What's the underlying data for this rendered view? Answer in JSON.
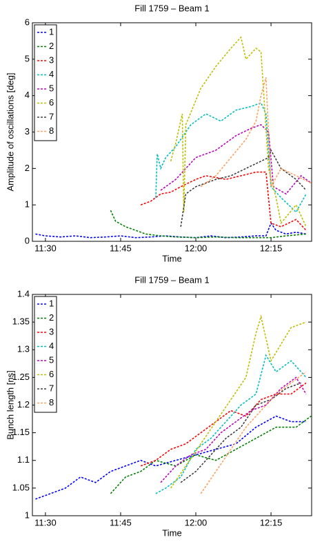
{
  "chart_data": [
    {
      "type": "line",
      "title": "Fill 1759 – Beam 1",
      "xlabel": "Time",
      "ylabel": "Amplitude of oscillations [deg]",
      "xlim": [
        687.4,
        743.1
      ],
      "xticks": [
        {
          "value": 690,
          "label": "11:30"
        },
        {
          "value": 705,
          "label": "11:45"
        },
        {
          "value": 720,
          "label": "12:00"
        },
        {
          "value": 735,
          "label": "12:15"
        }
      ],
      "ylim": [
        0,
        6
      ],
      "yticks": [
        0,
        1,
        2,
        3,
        4,
        5,
        6
      ],
      "legend": "upper left",
      "series": [
        {
          "name": "1",
          "color": "#0000ff",
          "x": [
            688,
            690,
            693,
            696,
            699,
            702,
            705,
            708,
            711,
            714,
            717,
            720,
            723,
            726,
            729,
            732,
            734,
            735,
            736,
            738,
            740,
            742
          ],
          "values": [
            0.2,
            0.15,
            0.12,
            0.15,
            0.1,
            0.12,
            0.15,
            0.1,
            0.12,
            0.15,
            0.12,
            0.1,
            0.15,
            0.1,
            0.12,
            0.15,
            0.15,
            0.5,
            0.3,
            0.2,
            0.25,
            0.2
          ]
        },
        {
          "name": "2",
          "color": "#007f00",
          "x": [
            703,
            704,
            706,
            708,
            710,
            713,
            716,
            720,
            724,
            728,
            732,
            735,
            738,
            742
          ],
          "values": [
            0.85,
            0.55,
            0.4,
            0.3,
            0.2,
            0.15,
            0.12,
            0.1,
            0.12,
            0.1,
            0.1,
            0.1,
            0.15,
            0.2
          ]
        },
        {
          "name": "3",
          "color": "#ff0000",
          "x": [
            709,
            711,
            713,
            715,
            717,
            720,
            722,
            724,
            726,
            729,
            732,
            734,
            735,
            737,
            740,
            742
          ],
          "values": [
            1.0,
            1.1,
            1.3,
            1.35,
            1.5,
            1.7,
            1.8,
            1.75,
            1.7,
            1.8,
            1.9,
            1.9,
            0.5,
            0.4,
            0.6,
            0.3
          ]
        },
        {
          "name": "4",
          "color": "#00bfbf",
          "x": [
            712,
            712.3,
            713,
            714,
            716,
            719,
            722,
            725,
            728,
            731,
            733,
            734,
            735,
            737,
            740,
            742
          ],
          "values": [
            1.2,
            2.4,
            2.0,
            2.3,
            2.6,
            3.2,
            3.5,
            3.3,
            3.6,
            3.7,
            3.8,
            3.5,
            1.5,
            1.2,
            0.8,
            1.3
          ]
        },
        {
          "name": "5",
          "color": "#bf00bf",
          "x": [
            713,
            716,
            720,
            724,
            728,
            731,
            733,
            734.5,
            735.5,
            738,
            741,
            743
          ],
          "values": [
            1.4,
            1.7,
            2.3,
            2.5,
            2.9,
            3.1,
            3.2,
            3.0,
            1.5,
            1.3,
            1.8,
            1.6
          ]
        },
        {
          "name": "6",
          "color": "#bfbf00",
          "x": [
            715,
            716,
            717.3,
            717.6,
            718,
            721,
            724,
            727,
            729,
            730,
            732,
            733,
            734.5,
            736,
            737,
            740,
            742
          ],
          "values": [
            2.2,
            2.7,
            3.5,
            0.8,
            3.2,
            4.2,
            4.8,
            5.3,
            5.6,
            5.0,
            5.3,
            5.2,
            2.0,
            1.2,
            0.5,
            1.0,
            0.4
          ]
        },
        {
          "name": "7",
          "color": "#3f3f3f",
          "x": [
            717,
            718,
            720,
            724,
            727,
            730,
            733,
            734.5,
            735,
            737,
            740,
            742
          ],
          "values": [
            0.4,
            1.3,
            1.5,
            1.7,
            1.8,
            2.0,
            2.2,
            2.3,
            2.5,
            2.0,
            1.7,
            1.4
          ]
        },
        {
          "name": "8",
          "color": "#ffa060",
          "x": [
            721,
            724,
            727,
            730,
            732,
            733,
            734,
            735,
            737,
            740,
            743
          ],
          "values": [
            1.5,
            1.8,
            2.3,
            2.8,
            3.3,
            4.0,
            4.5,
            1.5,
            2.0,
            1.8,
            1.6
          ]
        }
      ]
    },
    {
      "type": "line",
      "title": "Fill 1759 – Beam 1",
      "xlabel": "Time",
      "ylabel": "Bunch length [ns]",
      "xlim": [
        687.4,
        743.1
      ],
      "xticks": [
        {
          "value": 690,
          "label": "11:30"
        },
        {
          "value": 705,
          "label": "11:45"
        },
        {
          "value": 720,
          "label": "12:00"
        },
        {
          "value": 735,
          "label": "12:15"
        }
      ],
      "ylim": [
        1,
        1.4
      ],
      "yticks": [
        1,
        1.05,
        1.1,
        1.15,
        1.2,
        1.25,
        1.3,
        1.35,
        1.4
      ],
      "legend": "upper left",
      "series": [
        {
          "name": "1",
          "color": "#0000ff",
          "x": [
            688,
            691,
            694,
            697,
            700,
            703,
            706,
            709,
            712,
            716,
            720,
            724,
            728,
            732,
            736,
            739,
            742
          ],
          "values": [
            1.03,
            1.04,
            1.05,
            1.07,
            1.06,
            1.08,
            1.09,
            1.1,
            1.09,
            1.1,
            1.11,
            1.12,
            1.13,
            1.16,
            1.18,
            1.17,
            1.17
          ]
        },
        {
          "name": "2",
          "color": "#007f00",
          "x": [
            703,
            706,
            709,
            712,
            716,
            720,
            724,
            728,
            732,
            736,
            740,
            743
          ],
          "values": [
            1.04,
            1.07,
            1.08,
            1.1,
            1.09,
            1.11,
            1.1,
            1.12,
            1.14,
            1.16,
            1.16,
            1.18
          ]
        },
        {
          "name": "3",
          "color": "#ff0000",
          "x": [
            709,
            712,
            715,
            718,
            721,
            724,
            727,
            730,
            733,
            736,
            739,
            742
          ],
          "values": [
            1.09,
            1.1,
            1.12,
            1.13,
            1.15,
            1.17,
            1.19,
            1.18,
            1.21,
            1.22,
            1.22,
            1.24
          ]
        },
        {
          "name": "4",
          "color": "#00bfbf",
          "x": [
            712,
            714,
            717,
            720,
            723,
            726,
            729,
            732,
            734,
            736,
            739,
            742
          ],
          "values": [
            1.04,
            1.05,
            1.07,
            1.12,
            1.14,
            1.17,
            1.2,
            1.22,
            1.29,
            1.26,
            1.28,
            1.25
          ]
        },
        {
          "name": "5",
          "color": "#bf00bf",
          "x": [
            713,
            716,
            719,
            722,
            725,
            728,
            731,
            734,
            737,
            740,
            742
          ],
          "values": [
            1.06,
            1.09,
            1.11,
            1.12,
            1.15,
            1.17,
            1.19,
            1.2,
            1.23,
            1.25,
            1.22
          ]
        },
        {
          "name": "6",
          "color": "#bfbf00",
          "x": [
            715,
            718,
            721,
            724,
            727,
            730,
            732,
            733,
            735,
            737,
            739,
            742
          ],
          "values": [
            1.05,
            1.09,
            1.13,
            1.17,
            1.21,
            1.25,
            1.33,
            1.36,
            1.28,
            1.31,
            1.34,
            1.35
          ]
        },
        {
          "name": "7",
          "color": "#3f3f3f",
          "x": [
            717,
            720,
            723,
            726,
            729,
            732,
            735,
            738,
            741
          ],
          "values": [
            1.06,
            1.08,
            1.11,
            1.14,
            1.16,
            1.2,
            1.21,
            1.23,
            1.24
          ]
        },
        {
          "name": "8",
          "color": "#ffa060",
          "x": [
            721,
            724,
            727,
            730,
            733,
            736,
            739,
            742
          ],
          "values": [
            1.04,
            1.08,
            1.12,
            1.16,
            1.19,
            1.22,
            1.24,
            1.26
          ]
        }
      ]
    }
  ]
}
